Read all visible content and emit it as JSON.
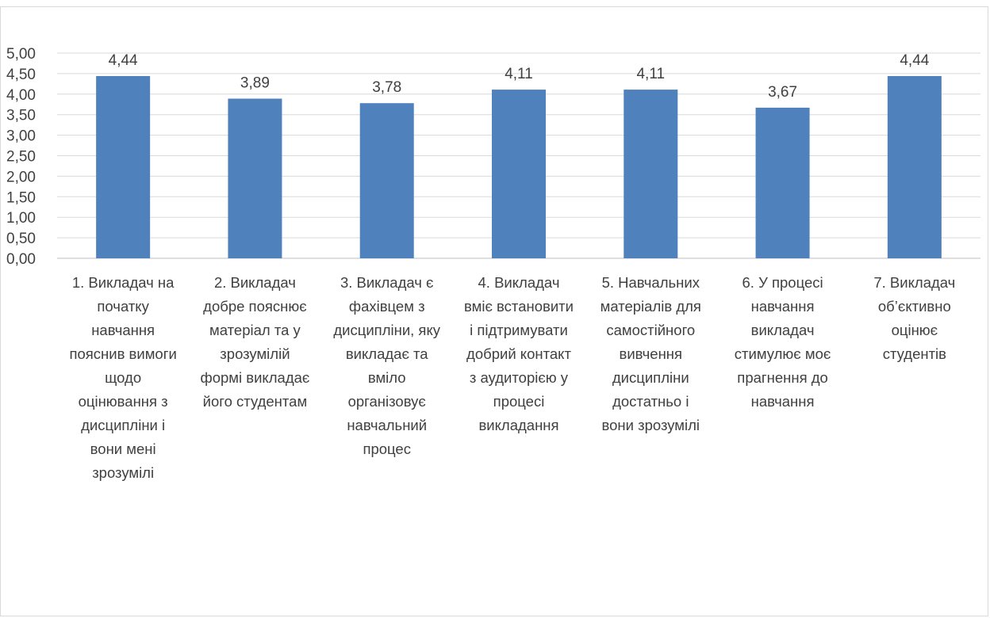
{
  "chart_data": {
    "type": "bar",
    "title": "",
    "xlabel": "",
    "ylabel": "",
    "ylim": [
      0,
      5
    ],
    "ytick_step": 0.5,
    "yticks": [
      "0,00",
      "0,50",
      "1,00",
      "1,50",
      "2,00",
      "2,50",
      "3,00",
      "3,50",
      "4,00",
      "4,50",
      "5,00"
    ],
    "grid": true,
    "legend": "none",
    "bar_color": "#4F81BD",
    "categories": [
      "1. Викладач на\nпочатку\nнавчання\nпояснив вимоги\nщодо\nоцінювання з\nдисципліни і\nвони мені\nзрозумілі",
      "2. Викладач\nдобре пояснює\nматеріал та у\nзрозумілій\nформі викладає\nйого студентам",
      "3. Викладач є\nфахівцем з\nдисципліни, яку\nвикладає та\nвміло\nорганізовує\nнавчальний\nпроцес",
      "4. Викладач\nвміє встановити\nі підтримувати\nдобрий контакт\nз аудиторією у\nпроцесі\nвикладання",
      "5. Навчальних\nматеріалів для\nсамостійного\nвивчення\nдисципліни\nдостатньо і\nвони зрозумілі",
      "6.  У процесі\nнавчання\nвикладач\nстимулює моє\nпрагнення до\nнавчання",
      "7. Викладач\nоб’єктивно\nоцінює\nстудентів"
    ],
    "values": [
      4.44,
      3.89,
      3.78,
      4.11,
      4.11,
      3.67,
      4.44
    ],
    "data_labels": [
      "4,44",
      "3,89",
      "3,78",
      "4,11",
      "4,11",
      "3,67",
      "4,44"
    ]
  }
}
